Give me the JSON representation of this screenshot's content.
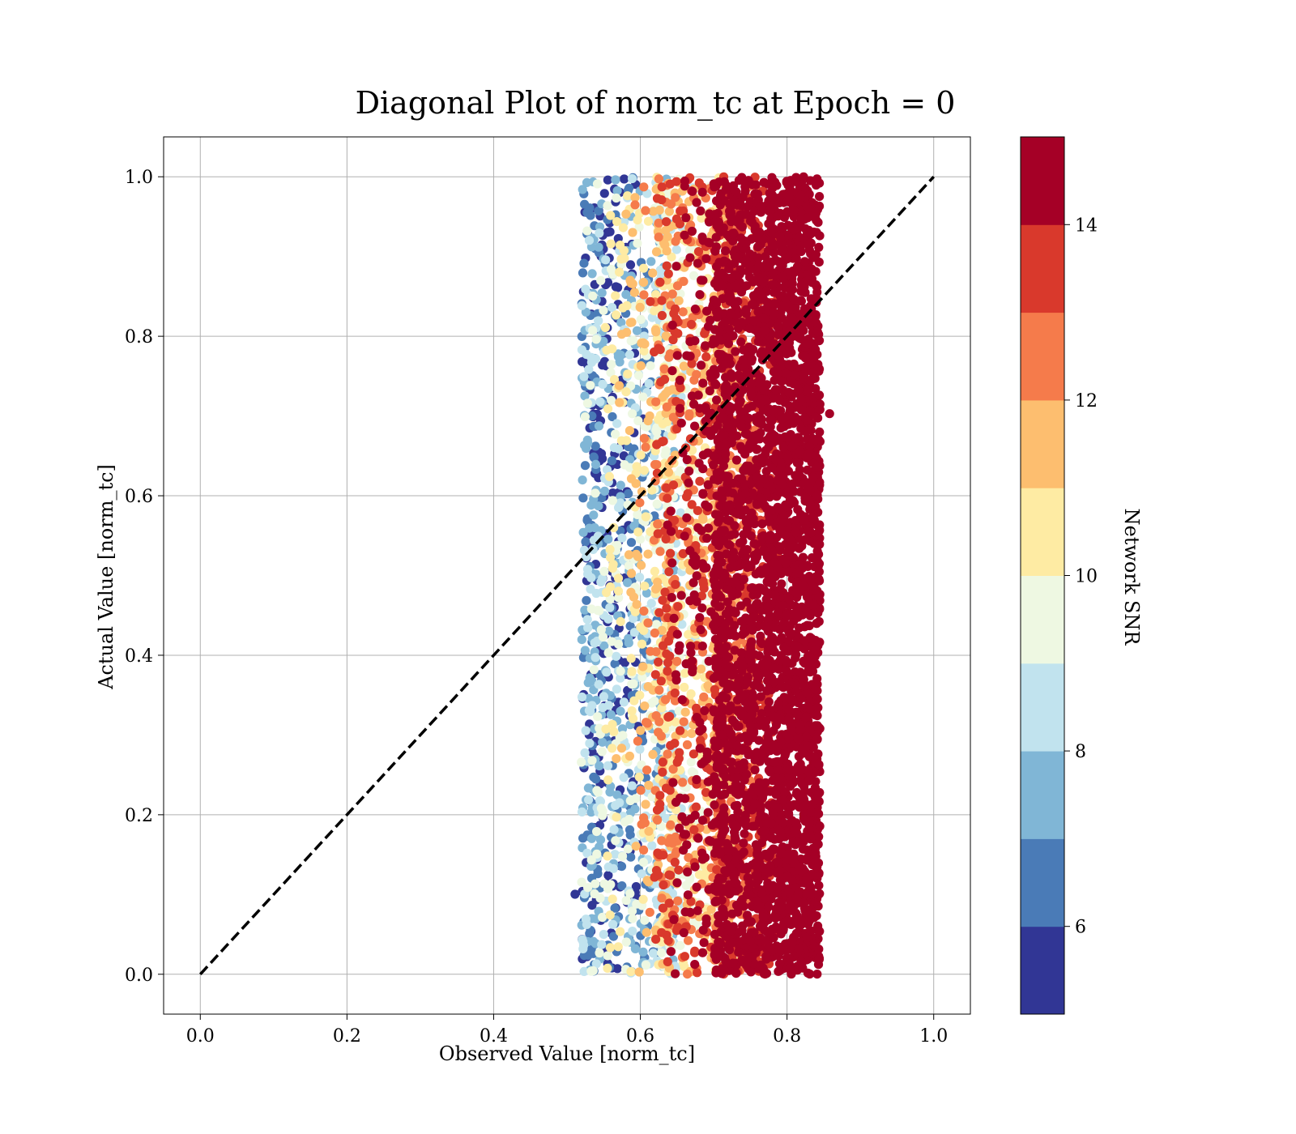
{
  "chart_data": {
    "type": "scatter",
    "title": "Diagonal Plot of norm_tc at Epoch = 0",
    "xlabel": "Observed Value [norm_tc]",
    "ylabel": "Actual Value [norm_tc]",
    "xlim": [
      -0.05,
      1.05
    ],
    "ylim": [
      -0.05,
      1.05
    ],
    "xticks": [
      0.0,
      0.2,
      0.4,
      0.6,
      0.8,
      1.0
    ],
    "yticks": [
      0.0,
      0.2,
      0.4,
      0.6,
      0.8,
      1.0
    ],
    "xtick_labels": [
      "0.0",
      "0.2",
      "0.4",
      "0.6",
      "0.8",
      "1.0"
    ],
    "ytick_labels": [
      "0.0",
      "0.2",
      "0.4",
      "0.6",
      "0.8",
      "1.0"
    ],
    "grid": true,
    "reference_line": {
      "x": [
        0.0,
        1.0
      ],
      "y": [
        0.0,
        1.0
      ],
      "style": "dashed",
      "color": "#000000"
    },
    "scatter_distribution": {
      "x_range": [
        0.51,
        0.86
      ],
      "y_range": [
        0.0,
        1.0
      ],
      "trend": "color (Network SNR) increases with observed value; low SNR points near x≈0.52–0.56, high SNR points densely packed near x≈0.70–0.85"
    },
    "colorbar": {
      "label": "Network SNR",
      "range": [
        5,
        15
      ],
      "ticks": [
        6,
        8,
        10,
        12,
        14
      ],
      "tick_labels": [
        "6",
        "8",
        "10",
        "12",
        "14"
      ],
      "levels": [
        5,
        6,
        7,
        8,
        9,
        10,
        11,
        12,
        13,
        14,
        15
      ],
      "colors": [
        "#313695",
        "#4575b4",
        "#74add1",
        "#abd9e9",
        "#e0f3f8",
        "#fee090",
        "#fdae61",
        "#f46d43",
        "#d73027",
        "#a50026"
      ],
      "colors_display": [
        "#313695",
        "#4a7bb7",
        "#80b6d6",
        "#c1e3ee",
        "#eef8e2",
        "#feeba3",
        "#fdbe6f",
        "#f57b4b",
        "#d9392c",
        "#a50026"
      ]
    }
  }
}
